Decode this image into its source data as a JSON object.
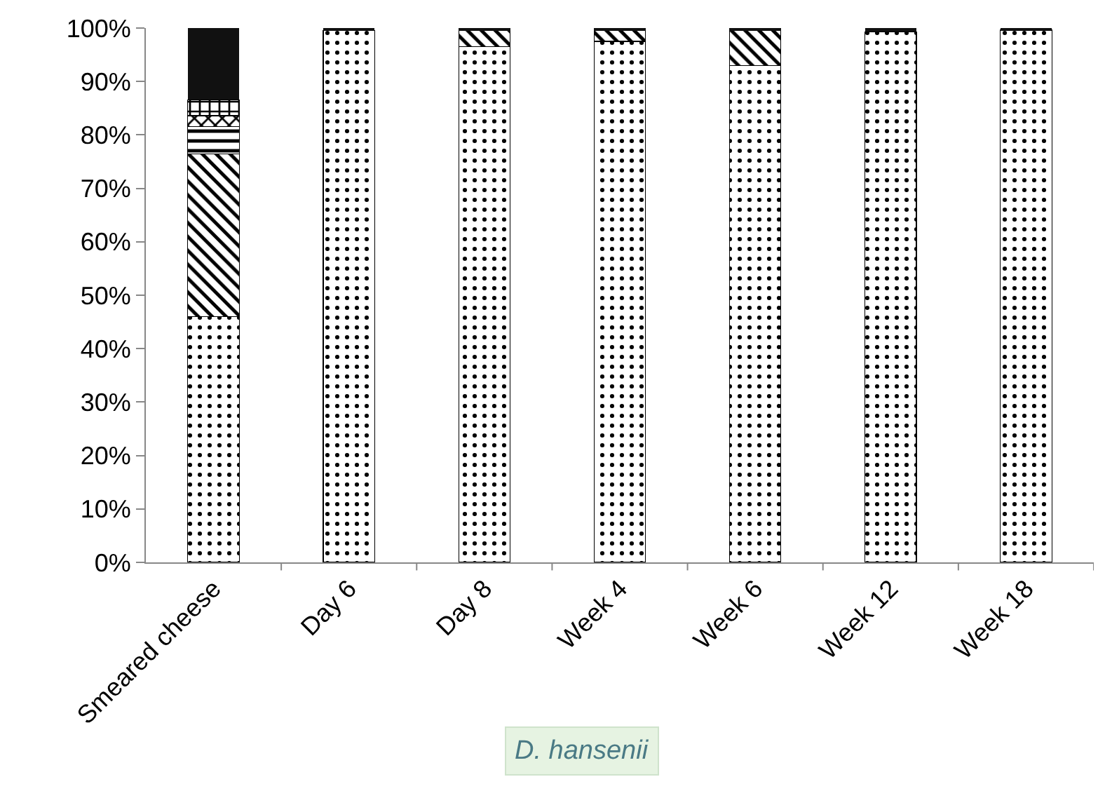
{
  "chart_data": {
    "type": "bar",
    "stacked": true,
    "categories": [
      "Smeared cheese",
      "Day 6",
      "Day 8",
      "Week 4",
      "Week 6",
      "Week 12",
      "Week 18"
    ],
    "series": [
      {
        "color": "#000000",
        "values": [
          46,
          99.5,
          96.5,
          97.5,
          93,
          99.3,
          99.7
        ]
      },
      {
        "color": "#000000",
        "values": [
          30.4,
          0,
          3,
          2,
          6.5,
          0,
          0
        ]
      },
      {
        "color": "#000000",
        "values": [
          5.2,
          0,
          0,
          0,
          0,
          0,
          0
        ]
      },
      {
        "color": "#000000",
        "values": [
          2,
          0,
          0,
          0,
          0,
          0,
          0
        ]
      },
      {
        "color": "#000000",
        "values": [
          3,
          0,
          0,
          0,
          0,
          0,
          0
        ]
      },
      {
        "color": "#111111",
        "values": [
          13.4,
          0.5,
          0.5,
          0.5,
          0.5,
          0.7,
          0.3
        ]
      }
    ],
    "ylim": [
      0,
      100
    ],
    "yticks": [
      {
        "value": 0,
        "label": "0%"
      },
      {
        "value": 10,
        "label": "10%"
      },
      {
        "value": 20,
        "label": "20%"
      },
      {
        "value": 30,
        "label": "30%"
      },
      {
        "value": 40,
        "label": "40%"
      },
      {
        "value": 50,
        "label": "50%"
      },
      {
        "value": 60,
        "label": "60%"
      },
      {
        "value": 70,
        "label": "70%"
      },
      {
        "value": 80,
        "label": "80%"
      },
      {
        "value": 90,
        "label": "90%"
      },
      {
        "value": 100,
        "label": "100%"
      }
    ],
    "annotations": [
      "D. hansenii"
    ]
  }
}
